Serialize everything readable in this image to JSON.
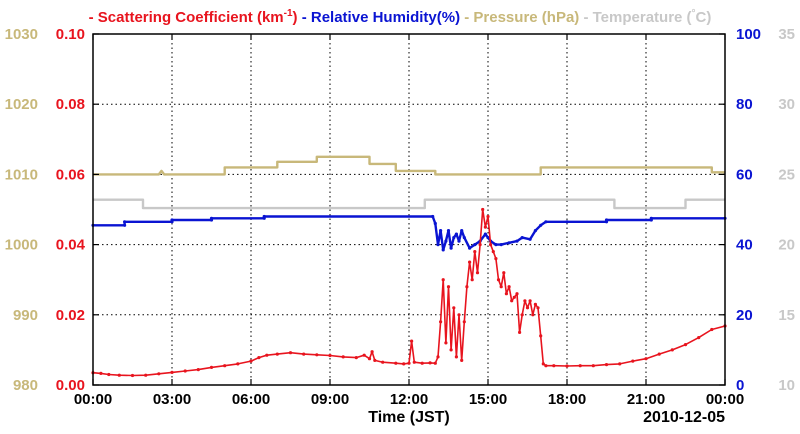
{
  "chart_data": {
    "type": "line",
    "date_label": "2010-12-05",
    "xlabel": "Time (JST)",
    "x_tick_labels": [
      "00:00",
      "03:00",
      "06:00",
      "09:00",
      "12:00",
      "15:00",
      "18:00",
      "21:00",
      "00:00"
    ],
    "xlim_hours": [
      0,
      24
    ],
    "colors": {
      "scattering": "#e8141e",
      "humidity": "#0a14d2",
      "pressure": "#c8b87a",
      "temperature": "#c8c8c8",
      "grid": "#000000"
    },
    "axes": [
      {
        "key": "pressure",
        "side": "left-outer",
        "color": "#c8b87a",
        "ylim": [
          980,
          1030
        ],
        "ticks": [
          "980",
          "990",
          "1000",
          "1010",
          "1020",
          "1030"
        ]
      },
      {
        "key": "scattering",
        "side": "left-inner",
        "color": "#e8141e",
        "ylim": [
          0,
          0.1
        ],
        "ticks": [
          "0.00",
          "0.02",
          "0.04",
          "0.06",
          "0.08",
          "0.10"
        ]
      },
      {
        "key": "humidity",
        "side": "right-inner",
        "color": "#0a14d2",
        "ylim": [
          0,
          100
        ],
        "ticks": [
          "0",
          "20",
          "40",
          "60",
          "80",
          "100"
        ]
      },
      {
        "key": "temperature",
        "side": "right-outer",
        "color": "#c8c8c8",
        "ylim": [
          10,
          35
        ],
        "ticks": [
          "10",
          "15",
          "20",
          "25",
          "30",
          "35"
        ]
      }
    ],
    "legend": [
      {
        "key": "scattering",
        "label": "Scattering Coefficient (km",
        "sup": "-1",
        "suffix": ")"
      },
      {
        "key": "humidity",
        "label": "Relative Humidity(%)",
        "sup": "",
        "suffix": ""
      },
      {
        "key": "pressure",
        "label": "Pressure (hPa)",
        "sup": "",
        "suffix": ""
      },
      {
        "key": "temperature",
        "label": "Temperature (",
        "sup": "°",
        "suffix": "C)"
      }
    ],
    "legend_dash": "-",
    "series": [
      {
        "name": "Scattering Coefficient",
        "key": "scattering",
        "axis": 1,
        "markers": true,
        "points": [
          [
            0,
            0.0035
          ],
          [
            0.3,
            0.0033
          ],
          [
            0.6,
            0.003
          ],
          [
            1,
            0.0028
          ],
          [
            1.5,
            0.0027
          ],
          [
            2,
            0.0028
          ],
          [
            2.5,
            0.0032
          ],
          [
            3,
            0.0036
          ],
          [
            3.5,
            0.004
          ],
          [
            4,
            0.0044
          ],
          [
            4.5,
            0.005
          ],
          [
            5,
            0.0055
          ],
          [
            5.5,
            0.006
          ],
          [
            6,
            0.0068
          ],
          [
            6.3,
            0.0078
          ],
          [
            6.6,
            0.0085
          ],
          [
            7,
            0.0088
          ],
          [
            7.5,
            0.0092
          ],
          [
            8,
            0.0088
          ],
          [
            8.5,
            0.0086
          ],
          [
            9,
            0.0084
          ],
          [
            9.5,
            0.008
          ],
          [
            10,
            0.0078
          ],
          [
            10.3,
            0.0085
          ],
          [
            10.5,
            0.0075
          ],
          [
            10.6,
            0.0095
          ],
          [
            10.7,
            0.007
          ],
          [
            11,
            0.0065
          ],
          [
            11.5,
            0.0062
          ],
          [
            11.8,
            0.006
          ],
          [
            12,
            0.0062
          ],
          [
            12.1,
            0.0125
          ],
          [
            12.2,
            0.0065
          ],
          [
            12.5,
            0.0062
          ],
          [
            12.8,
            0.0063
          ],
          [
            13,
            0.0062
          ],
          [
            13.1,
            0.008
          ],
          [
            13.2,
            0.018
          ],
          [
            13.3,
            0.03
          ],
          [
            13.4,
            0.012
          ],
          [
            13.5,
            0.028
          ],
          [
            13.6,
            0.01
          ],
          [
            13.7,
            0.022
          ],
          [
            13.8,
            0.008
          ],
          [
            13.9,
            0.02
          ],
          [
            14,
            0.007
          ],
          [
            14.1,
            0.018
          ],
          [
            14.2,
            0.028
          ],
          [
            14.3,
            0.035
          ],
          [
            14.4,
            0.03
          ],
          [
            14.5,
            0.038
          ],
          [
            14.6,
            0.032
          ],
          [
            14.7,
            0.04
          ],
          [
            14.8,
            0.05
          ],
          [
            14.9,
            0.045
          ],
          [
            15,
            0.048
          ],
          [
            15.1,
            0.04
          ],
          [
            15.2,
            0.038
          ],
          [
            15.3,
            0.036
          ],
          [
            15.4,
            0.03
          ],
          [
            15.5,
            0.028
          ],
          [
            15.6,
            0.032
          ],
          [
            15.7,
            0.026
          ],
          [
            15.8,
            0.028
          ],
          [
            15.9,
            0.024
          ],
          [
            16,
            0.025
          ],
          [
            16.1,
            0.026
          ],
          [
            16.2,
            0.015
          ],
          [
            16.3,
            0.02
          ],
          [
            16.4,
            0.024
          ],
          [
            16.5,
            0.022
          ],
          [
            16.6,
            0.024
          ],
          [
            16.7,
            0.02
          ],
          [
            16.8,
            0.023
          ],
          [
            16.9,
            0.022
          ],
          [
            17,
            0.014
          ],
          [
            17.1,
            0.006
          ],
          [
            17.2,
            0.0055
          ],
          [
            17.5,
            0.0055
          ],
          [
            18,
            0.0054
          ],
          [
            18.5,
            0.0055
          ],
          [
            19,
            0.0055
          ],
          [
            19.5,
            0.0058
          ],
          [
            20,
            0.006
          ],
          [
            20.5,
            0.0068
          ],
          [
            21,
            0.0075
          ],
          [
            21.5,
            0.0088
          ],
          [
            22,
            0.01
          ],
          [
            22.5,
            0.0115
          ],
          [
            23,
            0.0135
          ],
          [
            23.5,
            0.0158
          ],
          [
            24,
            0.0168
          ]
        ]
      },
      {
        "name": "Relative Humidity",
        "key": "humidity",
        "axis": 2,
        "markers": true,
        "points": [
          [
            0,
            45.5
          ],
          [
            1.2,
            45.5
          ],
          [
            1.2,
            46.5
          ],
          [
            3,
            46.5
          ],
          [
            3,
            47
          ],
          [
            4.5,
            47
          ],
          [
            4.5,
            47.5
          ],
          [
            6.5,
            47.5
          ],
          [
            6.5,
            48
          ],
          [
            12.9,
            48
          ],
          [
            13,
            46
          ],
          [
            13.1,
            40
          ],
          [
            13.2,
            44
          ],
          [
            13.3,
            38.5
          ],
          [
            13.4,
            41
          ],
          [
            13.5,
            44
          ],
          [
            13.6,
            39
          ],
          [
            13.7,
            42
          ],
          [
            13.8,
            43
          ],
          [
            13.9,
            41
          ],
          [
            14,
            44
          ],
          [
            14.1,
            42
          ],
          [
            14.3,
            39
          ],
          [
            14.5,
            40
          ],
          [
            14.7,
            41
          ],
          [
            14.9,
            43
          ],
          [
            15,
            42
          ],
          [
            15.1,
            41
          ],
          [
            15.3,
            40
          ],
          [
            15.5,
            40
          ],
          [
            15.8,
            40.5
          ],
          [
            16.1,
            41
          ],
          [
            16.3,
            42
          ],
          [
            16.6,
            41.5
          ],
          [
            16.8,
            44
          ],
          [
            17,
            45.5
          ],
          [
            17.2,
            46.5
          ],
          [
            18,
            46.5
          ],
          [
            19.5,
            46.5
          ],
          [
            19.5,
            47
          ],
          [
            21.2,
            47
          ],
          [
            21.2,
            47.5
          ],
          [
            24,
            47.5
          ]
        ]
      },
      {
        "name": "Pressure",
        "key": "pressure",
        "axis": 0,
        "markers": false,
        "points": [
          [
            0,
            1010
          ],
          [
            2.5,
            1010
          ],
          [
            2.6,
            1010.5
          ],
          [
            2.7,
            1010
          ],
          [
            5,
            1010
          ],
          [
            5,
            1011
          ],
          [
            7,
            1011
          ],
          [
            7,
            1011.8
          ],
          [
            8.5,
            1011.8
          ],
          [
            8.5,
            1012.5
          ],
          [
            10.5,
            1012.5
          ],
          [
            10.5,
            1011.5
          ],
          [
            11.5,
            1011.5
          ],
          [
            11.5,
            1010.5
          ],
          [
            13,
            1010.5
          ],
          [
            13,
            1010
          ],
          [
            17,
            1010
          ],
          [
            17,
            1011
          ],
          [
            23.5,
            1011
          ],
          [
            23.5,
            1010.3
          ],
          [
            24,
            1010.3
          ]
        ]
      },
      {
        "name": "Temperature",
        "key": "temperature",
        "axis": 3,
        "markers": false,
        "points": [
          [
            0,
            23.2
          ],
          [
            1.9,
            23.2
          ],
          [
            1.9,
            22.6
          ],
          [
            12.6,
            22.6
          ],
          [
            12.6,
            23.2
          ],
          [
            19.8,
            23.2
          ],
          [
            19.8,
            22.6
          ],
          [
            22.5,
            22.6
          ],
          [
            22.5,
            23.2
          ],
          [
            24,
            23.2
          ]
        ]
      }
    ]
  }
}
